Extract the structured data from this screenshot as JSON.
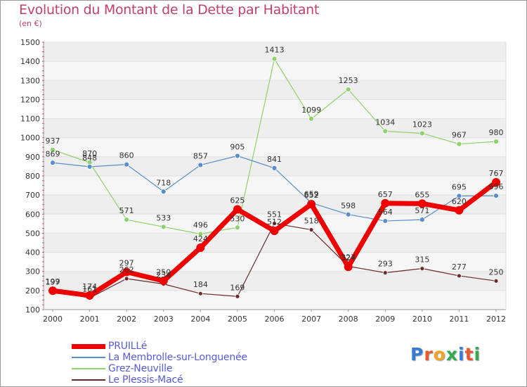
{
  "header": {
    "title": "Evolution du Montant de la Dette par Habitant",
    "subtitle": "(en €)"
  },
  "logo": {
    "text": "Proxiti",
    "letter_colors": [
      "#3a7bd5",
      "#e85a2a",
      "#f4a321",
      "#35a94b",
      "#3a7bd5",
      "#e85a2a",
      "#35a94b"
    ]
  },
  "chart_data": {
    "type": "line",
    "title": "Evolution du Montant de la Dette par Habitant",
    "subtitle": "(en €)",
    "xlabel": "",
    "ylabel": "",
    "x": [
      "2000",
      "2001",
      "2002",
      "2003",
      "2004",
      "2005",
      "2006",
      "2007",
      "2008",
      "2009",
      "2010",
      "2011",
      "2012"
    ],
    "ylim": [
      100,
      1500
    ],
    "yticks": [
      100,
      200,
      300,
      400,
      500,
      600,
      700,
      800,
      900,
      1000,
      1100,
      1200,
      1300,
      1400,
      1500
    ],
    "grid": "horizontal",
    "legend_position": "bottom-left",
    "series": [
      {
        "name": "Le Plessis-Macé",
        "color": "#6b2a2a",
        "width": 1.2,
        "marker": 3,
        "values": [
          197,
          161,
          262,
          234,
          184,
          169,
          551,
          518,
          327,
          293,
          315,
          277,
          250
        ],
        "labels": [
          "197",
          "161",
          "262",
          "234",
          "184",
          "169",
          "551",
          "518",
          "327",
          "293",
          "315",
          "277",
          "250"
        ]
      },
      {
        "name": "Grez-Neuville",
        "color": "#8fd16a",
        "width": 1.2,
        "marker": 3.5,
        "values": [
          937,
          870,
          571,
          533,
          496,
          530,
          1413,
          1099,
          1253,
          1034,
          1023,
          967,
          980
        ],
        "labels": [
          "937",
          "870",
          "571",
          "533",
          "496",
          "530",
          "1413",
          "1099",
          "1253",
          "1034",
          "1023",
          "967",
          "980"
        ]
      },
      {
        "name": "La Membrolle-sur-Longuenée",
        "color": "#5b8ec8",
        "width": 1.2,
        "marker": 3.5,
        "values": [
          869,
          848,
          860,
          718,
          857,
          905,
          841,
          659,
          598,
          564,
          571,
          695,
          696
        ],
        "labels": [
          "869",
          "848",
          "860",
          "718",
          "857",
          "905",
          "841",
          "659",
          "598",
          "564",
          "571",
          "695",
          "696"
        ]
      },
      {
        "name": "PRUILLé",
        "color": "#ee0000",
        "width": 7,
        "marker": 6,
        "values": [
          199,
          174,
          297,
          250,
          424,
          625,
          512,
          652,
          324,
          657,
          655,
          620,
          767
        ],
        "labels": [
          "199",
          "174",
          "297",
          "250",
          "424",
          "625",
          "512",
          "652",
          "324",
          "657",
          "655",
          "620",
          "767"
        ]
      }
    ]
  },
  "legend": [
    {
      "name": "PRUILLé",
      "color": "#ee0000",
      "text_color": "#5a5ad8",
      "thickness": 7
    },
    {
      "name": "La Membrolle-sur-Longuenée",
      "color": "#5b8ec8",
      "text_color": "#5a5ad8",
      "thickness": 2
    },
    {
      "name": "Grez-Neuville",
      "color": "#8fd16a",
      "text_color": "#5a5ad8",
      "thickness": 2
    },
    {
      "name": "Le Plessis-Macé",
      "color": "#6b2a2a",
      "text_color": "#5a5ad8",
      "thickness": 2
    }
  ]
}
